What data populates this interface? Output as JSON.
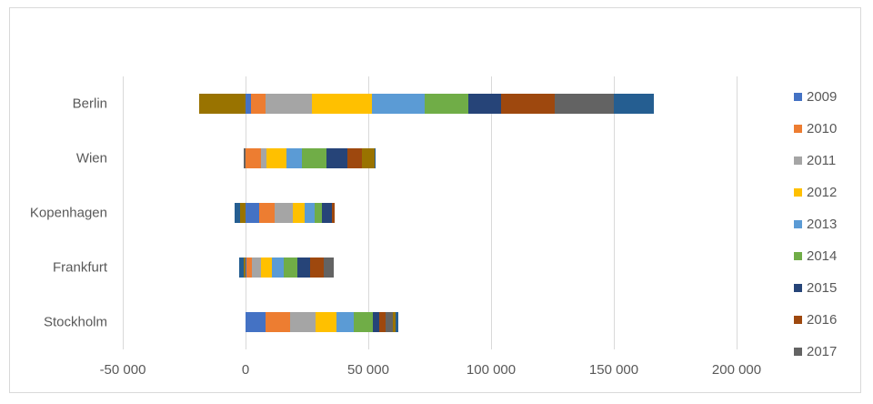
{
  "chart_data": {
    "type": "bar",
    "orientation": "horizontal",
    "stacked": true,
    "title": "",
    "xlabel": "",
    "ylabel": "",
    "xlim": [
      -50000,
      200000
    ],
    "x_ticks": [
      -50000,
      0,
      50000,
      100000,
      150000,
      200000
    ],
    "x_tick_labels": [
      "-50 000",
      "0",
      "50 000",
      "100 000",
      "150 000",
      "200 000"
    ],
    "grid": "vertical",
    "legend_position": "right",
    "categories": [
      "Berlin",
      "Wien",
      "Kopenhagen",
      "Frankfurt",
      "Stockholm"
    ],
    "series": [
      {
        "name": "2009",
        "color": "#4472C4",
        "legend_visible": true,
        "values": [
          2200,
          0,
          5500,
          400,
          8100
        ]
      },
      {
        "name": "2010",
        "color": "#ED7D31",
        "legend_visible": true,
        "values": [
          5900,
          6300,
          6300,
          2200,
          10000
        ]
      },
      {
        "name": "2011",
        "color": "#A5A5A5",
        "legend_visible": true,
        "values": [
          18900,
          2200,
          7400,
          3700,
          10400
        ]
      },
      {
        "name": "2012",
        "color": "#FFC000",
        "legend_visible": true,
        "values": [
          24400,
          8100,
          4800,
          4400,
          8500
        ]
      },
      {
        "name": "2013",
        "color": "#5B9BD5",
        "legend_visible": true,
        "values": [
          21500,
          6300,
          4100,
          4800,
          7000
        ]
      },
      {
        "name": "2014",
        "color": "#70AD47",
        "legend_visible": true,
        "values": [
          17800,
          10000,
          3000,
          5500,
          7800
        ]
      },
      {
        "name": "2015",
        "color": "#264478",
        "legend_visible": true,
        "values": [
          13300,
          8500,
          4100,
          5200,
          2600
        ]
      },
      {
        "name": "2016",
        "color": "#9E480E",
        "legend_visible": true,
        "values": [
          21900,
          5900,
          1100,
          5500,
          2600
        ]
      },
      {
        "name": "2017",
        "color": "#636363",
        "legend_visible": true,
        "values": [
          24100,
          -700,
          0,
          4400,
          3000
        ]
      },
      {
        "name": "",
        "color": "#997300",
        "legend_visible": false,
        "values": [
          -19000,
          5200,
          -2200,
          -700,
          1100
        ]
      },
      {
        "name": "",
        "color": "#255E91",
        "legend_visible": false,
        "values": [
          16300,
          400,
          -2200,
          -1900,
          1100
        ]
      }
    ]
  },
  "legend": {
    "items": [
      {
        "label": "2009",
        "color": "#4472C4"
      },
      {
        "label": "2010",
        "color": "#ED7D31"
      },
      {
        "label": "2011",
        "color": "#A5A5A5"
      },
      {
        "label": "2012",
        "color": "#FFC000"
      },
      {
        "label": "2013",
        "color": "#5B9BD5"
      },
      {
        "label": "2014",
        "color": "#70AD47"
      },
      {
        "label": "2015",
        "color": "#264478"
      },
      {
        "label": "2016",
        "color": "#9E480E"
      },
      {
        "label": "2017",
        "color": "#636363"
      }
    ]
  }
}
